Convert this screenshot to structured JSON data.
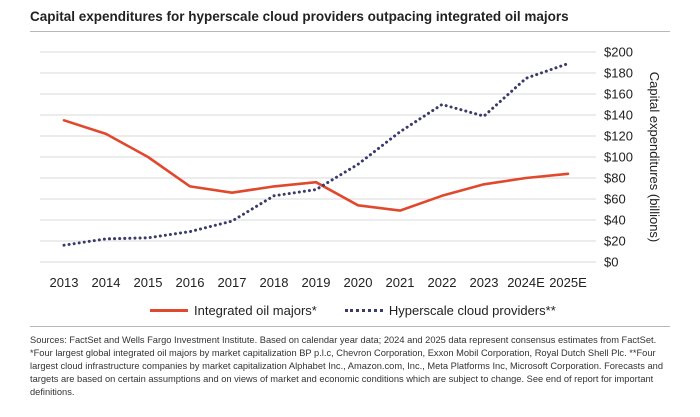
{
  "title": "Capital expenditures for hyperscale cloud providers outpacing integrated oil majors",
  "footnote": "Sources: FactSet and Wells Fargo Investment Institute. Based on calendar year data; 2024 and 2025 data represent consensus estimates from FactSet. *Four largest global integrated oil majors by market capitalization  BP p.l.c, Chevron Corporation, Exxon Mobil Corporation, Royal Dutch Shell Plc. **Four largest cloud infrastructure companies by market capitalization  Alphabet Inc., Amazon.com, Inc., Meta Platforms Inc, Microsoft Corporation. Forecasts and targets are based on certain assumptions and on views of market and economic conditions which are subject to change. See end of report for important definitions.",
  "legend": {
    "oil": "Integrated oil majors*",
    "cloud": "Hyperscale cloud providers**"
  },
  "colors": {
    "oil": "#e0492d",
    "cloud": "#3b3b6b",
    "grid": "#d9d9d9"
  },
  "chart_data": {
    "type": "line",
    "title": "Capital expenditures for hyperscale cloud providers outpacing integrated oil majors",
    "xlabel": "",
    "ylabel": "Capital expenditures (billions)",
    "categories": [
      "2013",
      "2014",
      "2015",
      "2016",
      "2017",
      "2018",
      "2019",
      "2020",
      "2021",
      "2022",
      "2023",
      "2024E",
      "2025E"
    ],
    "ylim": [
      0,
      200
    ],
    "yticks": [
      "$0",
      "$20",
      "$40",
      "$60",
      "$80",
      "$100",
      "$120",
      "$140",
      "$160",
      "$180",
      "$200"
    ],
    "y_axis_side": "right",
    "grid": true,
    "legend_position": "bottom",
    "series": [
      {
        "name": "Integrated oil majors*",
        "style": "solid",
        "values": [
          135,
          122,
          100,
          72,
          66,
          72,
          76,
          54,
          49,
          63,
          74,
          80,
          84
        ]
      },
      {
        "name": "Hyperscale cloud providers**",
        "style": "dotted",
        "values": [
          16,
          22,
          23,
          29,
          39,
          63,
          69,
          93,
          124,
          150,
          139,
          175,
          189
        ]
      }
    ]
  }
}
